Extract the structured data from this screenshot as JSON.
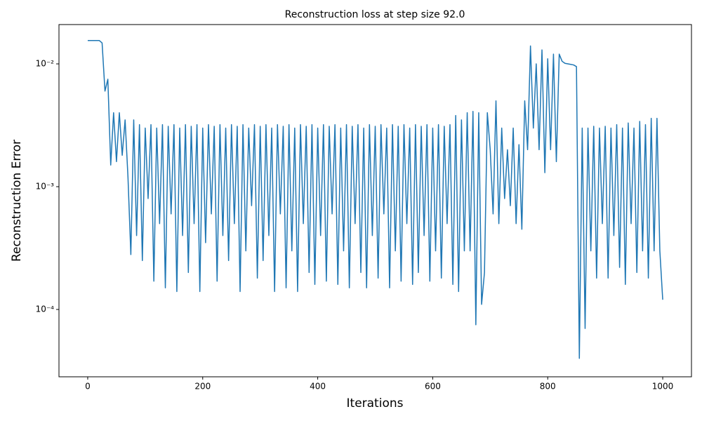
{
  "chart_data": {
    "type": "line",
    "title": "Reconstruction loss at step size 92.0",
    "x_label": "Iterations",
    "y_label": "Reconstruction Error",
    "color": "#1f77b4",
    "log_y": true,
    "xlim": [
      -50,
      1050
    ],
    "ylim": [
      2.83e-05,
      0.0209
    ],
    "xticks": [
      0,
      200,
      400,
      600,
      800,
      1000
    ],
    "yticks": [
      {
        "value": 0.0001,
        "label": "10⁻⁴"
      },
      {
        "value": 0.001,
        "label": "10⁻³"
      },
      {
        "value": 0.01,
        "label": "10⁻²"
      }
    ],
    "x": [
      0,
      5,
      10,
      15,
      20,
      25,
      30,
      35,
      40,
      45,
      50,
      55,
      60,
      65,
      70,
      75,
      80,
      85,
      90,
      95,
      100,
      105,
      110,
      115,
      120,
      125,
      130,
      135,
      140,
      145,
      150,
      155,
      160,
      165,
      170,
      175,
      180,
      185,
      190,
      195,
      200,
      205,
      210,
      215,
      220,
      225,
      230,
      235,
      240,
      245,
      250,
      255,
      260,
      265,
      270,
      275,
      280,
      285,
      290,
      295,
      300,
      305,
      310,
      315,
      320,
      325,
      330,
      335,
      340,
      345,
      350,
      355,
      360,
      365,
      370,
      375,
      380,
      385,
      390,
      395,
      400,
      405,
      410,
      415,
      420,
      425,
      430,
      435,
      440,
      445,
      450,
      455,
      460,
      465,
      470,
      475,
      480,
      485,
      490,
      495,
      500,
      505,
      510,
      515,
      520,
      525,
      530,
      535,
      540,
      545,
      550,
      555,
      560,
      565,
      570,
      575,
      580,
      585,
      590,
      595,
      600,
      605,
      610,
      615,
      620,
      625,
      630,
      635,
      640,
      645,
      650,
      655,
      660,
      665,
      670,
      675,
      680,
      685,
      690,
      695,
      700,
      705,
      710,
      715,
      720,
      725,
      730,
      735,
      740,
      745,
      750,
      755,
      760,
      765,
      770,
      775,
      780,
      785,
      790,
      795,
      800,
      805,
      810,
      815,
      820,
      825,
      830,
      835,
      840,
      845,
      850,
      855,
      860,
      865,
      870,
      875,
      880,
      885,
      890,
      895,
      900,
      905,
      910,
      915,
      920,
      925,
      930,
      935,
      940,
      945,
      950,
      955,
      960,
      965,
      970,
      975,
      980,
      985,
      990,
      995,
      1000
    ],
    "values": [
      0.0155,
      0.0155,
      0.0155,
      0.0155,
      0.0155,
      0.0148,
      0.006,
      0.0075,
      0.0015,
      0.004,
      0.0016,
      0.004,
      0.0018,
      0.0035,
      0.0012,
      0.00028,
      0.0035,
      0.0004,
      0.0032,
      0.00025,
      0.003,
      0.0008,
      0.0032,
      0.00017,
      0.003,
      0.0005,
      0.0032,
      0.00015,
      0.0031,
      0.0006,
      0.0032,
      0.00014,
      0.003,
      0.0004,
      0.0032,
      0.0002,
      0.0031,
      0.0005,
      0.0032,
      0.00014,
      0.003,
      0.00035,
      0.0032,
      0.0006,
      0.0031,
      0.00017,
      0.0032,
      0.0004,
      0.003,
      0.00025,
      0.0032,
      0.0005,
      0.0031,
      0.00014,
      0.0032,
      0.0003,
      0.003,
      0.0007,
      0.0032,
      0.00018,
      0.0031,
      0.00025,
      0.0032,
      0.0004,
      0.003,
      0.00014,
      0.0032,
      0.0006,
      0.0031,
      0.00015,
      0.0032,
      0.0003,
      0.003,
      0.00014,
      0.0032,
      0.0005,
      0.0031,
      0.0002,
      0.0032,
      0.00016,
      0.003,
      0.0004,
      0.0032,
      0.00017,
      0.0031,
      0.0006,
      0.0032,
      0.00016,
      0.003,
      0.0003,
      0.0032,
      0.00015,
      0.0031,
      0.0005,
      0.0032,
      0.0002,
      0.003,
      0.00015,
      0.0032,
      0.0004,
      0.0031,
      0.00018,
      0.0032,
      0.0006,
      0.003,
      0.00015,
      0.0032,
      0.0003,
      0.0031,
      0.00017,
      0.0032,
      0.0005,
      0.003,
      0.00016,
      0.0032,
      0.0002,
      0.0031,
      0.0004,
      0.0032,
      0.00017,
      0.003,
      0.0003,
      0.0032,
      0.00018,
      0.0031,
      0.0005,
      0.0032,
      0.00016,
      0.0038,
      0.00014,
      0.0035,
      0.0003,
      0.004,
      0.0003,
      0.0041,
      7.5e-05,
      0.004,
      0.00011,
      0.0002,
      0.004,
      0.002,
      0.0006,
      0.005,
      0.0005,
      0.003,
      0.0008,
      0.002,
      0.0007,
      0.003,
      0.0005,
      0.0022,
      0.00045,
      0.005,
      0.002,
      0.014,
      0.003,
      0.01,
      0.002,
      0.013,
      0.0013,
      0.011,
      0.002,
      0.012,
      0.0016,
      0.012,
      0.0105,
      0.0101,
      0.01,
      0.0099,
      0.0098,
      0.0095,
      4e-05,
      0.003,
      7e-05,
      0.003,
      0.0003,
      0.0031,
      0.00018,
      0.003,
      0.0005,
      0.0031,
      0.00018,
      0.003,
      0.0004,
      0.0032,
      0.00022,
      0.003,
      0.00016,
      0.0033,
      0.0005,
      0.003,
      0.0002,
      0.0034,
      0.0003,
      0.0032,
      0.00018,
      0.0036,
      0.0003,
      0.0036,
      0.0003,
      0.00012
    ]
  }
}
